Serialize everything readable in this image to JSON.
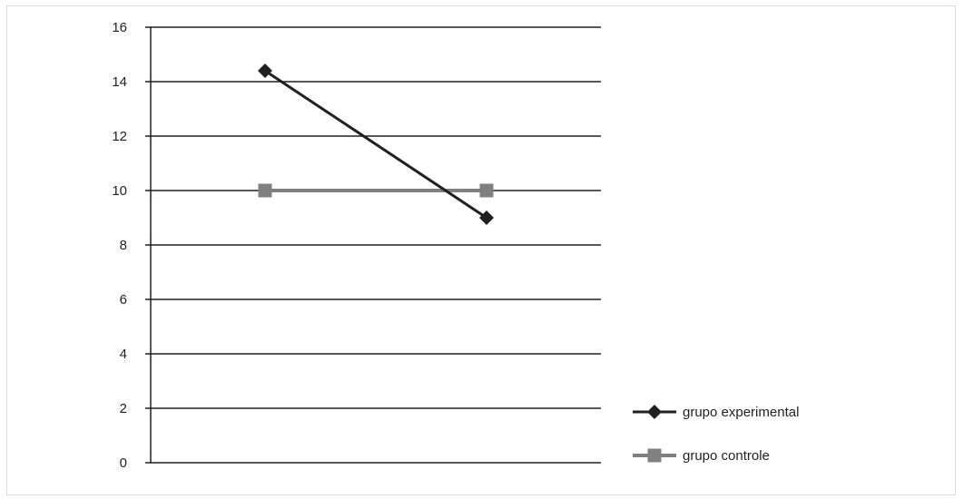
{
  "chart_data": {
    "type": "line",
    "categories": [
      "",
      ""
    ],
    "ylim": [
      0,
      16
    ],
    "yticks": [
      0,
      2,
      4,
      6,
      8,
      10,
      12,
      14,
      16
    ],
    "grid": true,
    "legend_position": "bottom-right",
    "series": [
      {
        "name": "grupo experimental",
        "values": [
          14.4,
          9.0
        ],
        "color": "#231f20",
        "marker": "diamond"
      },
      {
        "name": "grupo controle",
        "values": [
          10.0,
          10.0
        ],
        "color": "#808080",
        "marker": "square"
      }
    ]
  }
}
